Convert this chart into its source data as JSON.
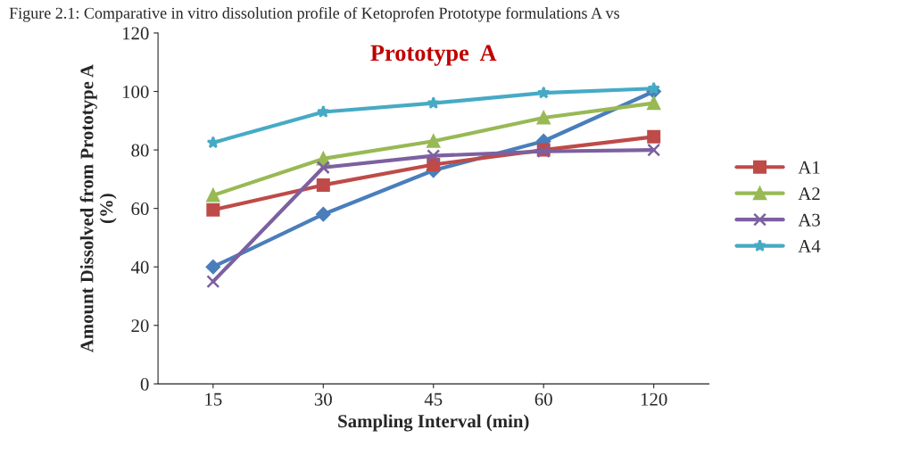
{
  "chart_data": {
    "type": "line",
    "title": "Prototype  A",
    "annotations": [
      "Figure 2.1: Comparative in vitro dissolution profile of Ketoprofen Prototype formulations A vs"
    ],
    "xlabel": "Sampling Interval (min)",
    "ylabel": "Amount Dissolved from Prototype A\n(%)",
    "categories": [
      "15",
      "30",
      "45",
      "60",
      "120"
    ],
    "series": [
      {
        "color": "#4a7ebb",
        "marker": "diamond",
        "values": [
          40,
          58,
          73,
          83,
          100
        ]
      },
      {
        "name": "A1",
        "color": "#be4b48",
        "marker": "square",
        "values": [
          59.5,
          68,
          75,
          80,
          84.5
        ]
      },
      {
        "name": "A2",
        "color": "#98b954",
        "marker": "triangle",
        "values": [
          64.5,
          77,
          83,
          91,
          96
        ]
      },
      {
        "name": "A3",
        "color": "#7d60a0",
        "marker": "cross",
        "values": [
          35,
          74,
          78,
          79.5,
          80
        ]
      },
      {
        "name": "A4",
        "color": "#46aac5",
        "marker": "star",
        "values": [
          82.5,
          93,
          96,
          99.5,
          101
        ]
      }
    ],
    "ylim": [
      0,
      120
    ],
    "yticks": [
      0,
      20,
      40,
      60,
      80,
      100,
      120
    ],
    "grid": false,
    "legend": "right"
  }
}
